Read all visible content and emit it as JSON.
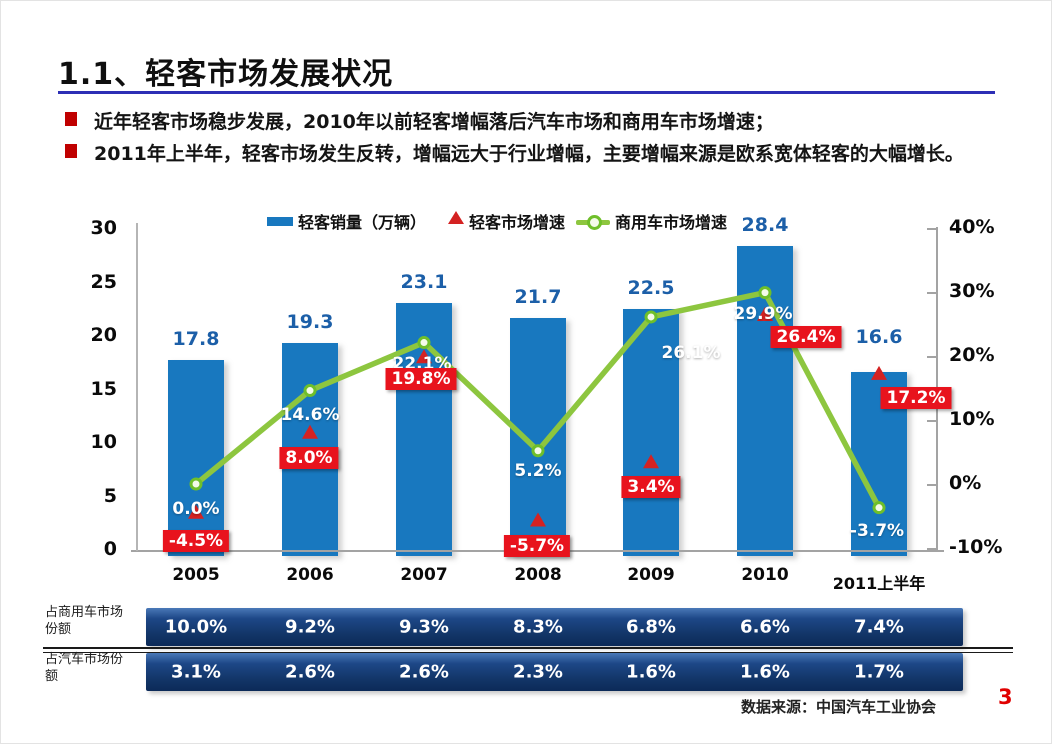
{
  "slide": {
    "title": "1.1、轻客市场发展状况",
    "bullets": [
      "近年轻客市场稳步发展，2010年以前轻客增幅落后汽车市场和商用车市场增速；",
      "2011年上半年，轻客市场发生反转，增幅远大于行业增幅，主要增幅来源是欧系宽体轻客的大幅增长。"
    ],
    "source_note": "数据来源：中国汽车工业协会",
    "page_number": "3"
  },
  "chart_data": {
    "type": "combo (bar + point + line)",
    "categories": [
      "2005",
      "2006",
      "2007",
      "2008",
      "2009",
      "2010",
      "2011上半年"
    ],
    "series": [
      {
        "name": "轻客销量（万辆）",
        "type": "bar",
        "axis": "left",
        "values": [
          17.8,
          19.3,
          23.1,
          21.7,
          22.5,
          28.4,
          16.6
        ],
        "labels": [
          "17.8",
          "19.3",
          "23.1",
          "21.7",
          "22.5",
          "28.4",
          "16.6"
        ]
      },
      {
        "name": "轻客市场增速",
        "type": "point-triangle",
        "axis": "right",
        "values_pct": [
          -4.5,
          8.0,
          19.8,
          -5.7,
          3.4,
          26.4,
          17.2
        ],
        "labels": [
          "-4.5%",
          "8.0%",
          "19.8%",
          "-5.7%",
          "3.4%",
          "26.4%",
          "17.2%"
        ]
      },
      {
        "name": "商用车市场增速",
        "type": "line",
        "axis": "right",
        "values_pct": [
          0.0,
          14.6,
          22.1,
          5.2,
          26.1,
          29.9,
          -3.7
        ],
        "labels": [
          "0.0%",
          "14.6%",
          "22.1%",
          "5.2%",
          "26.1%",
          "29.9%",
          "-3.7%"
        ]
      }
    ],
    "left_axis": {
      "ticks": [
        "30",
        "25",
        "20",
        "15",
        "10",
        "5",
        "0"
      ],
      "min": 0,
      "max": 30
    },
    "right_axis": {
      "ticks": [
        "40%",
        "30%",
        "20%",
        "10%",
        "0%",
        "-10%"
      ],
      "min": -10,
      "max": 40
    },
    "legend_position": "top",
    "grid": false
  },
  "table": {
    "rows": [
      {
        "label": "占商用车市场份额",
        "values": [
          "10.0%",
          "9.2%",
          "9.3%",
          "8.3%",
          "6.8%",
          "6.6%",
          "7.4%"
        ]
      },
      {
        "label": "占汽车市场份额",
        "values": [
          "3.1%",
          "2.6%",
          "2.6%",
          "2.3%",
          "1.6%",
          "1.6%",
          "1.7%"
        ]
      }
    ]
  },
  "colors": {
    "bar_blue": "#1878bf",
    "bar_value_label_blue": "#1c5fa8",
    "line_green": "#8dc63f",
    "line_marker_border": "#6fbf2a",
    "triangle_red": "#d42222",
    "label_box_red": "#e8131d",
    "title_underline_blue": "#2d2fb5",
    "bullet_red": "#c00000",
    "table_navy_top": "#4a79b8",
    "table_navy_bottom": "#0c2a58",
    "page_number_red": "#e00000"
  }
}
